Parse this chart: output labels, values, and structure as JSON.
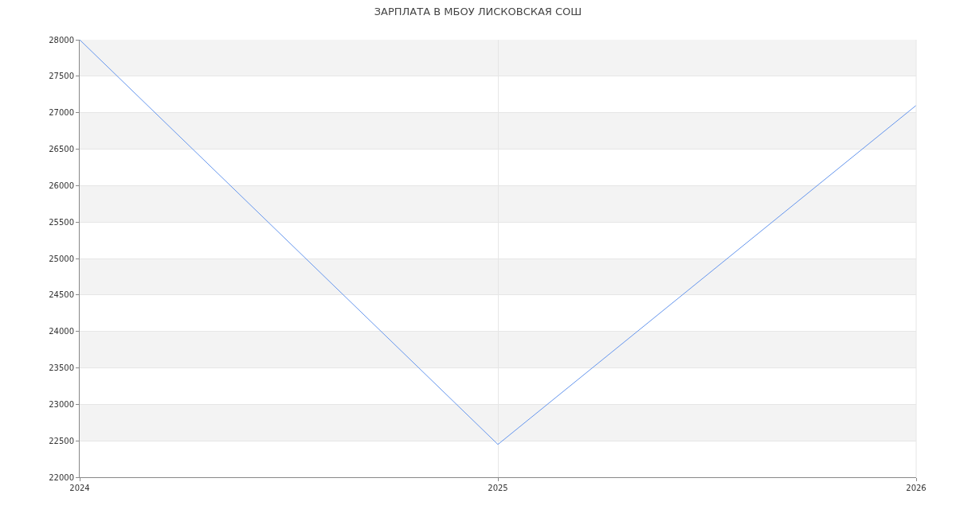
{
  "chart_data": {
    "type": "line",
    "title": "ЗАРПЛАТА В МБОУ ЛИСКОВСКАЯ СОШ",
    "x": [
      2024,
      2025,
      2026
    ],
    "series": [
      {
        "color": "#6495ed",
        "values": [
          28000,
          22450,
          27100
        ]
      }
    ],
    "xlim": [
      2024,
      2026
    ],
    "xticks": [
      2024,
      2025,
      2026
    ],
    "ylim": [
      22000,
      28000
    ],
    "yticks": [
      22000,
      22500,
      23000,
      23500,
      24000,
      24500,
      25000,
      25500,
      26000,
      26500,
      27000,
      27500,
      28000
    ],
    "grid": true,
    "marker": "none",
    "line_style": "solid"
  }
}
